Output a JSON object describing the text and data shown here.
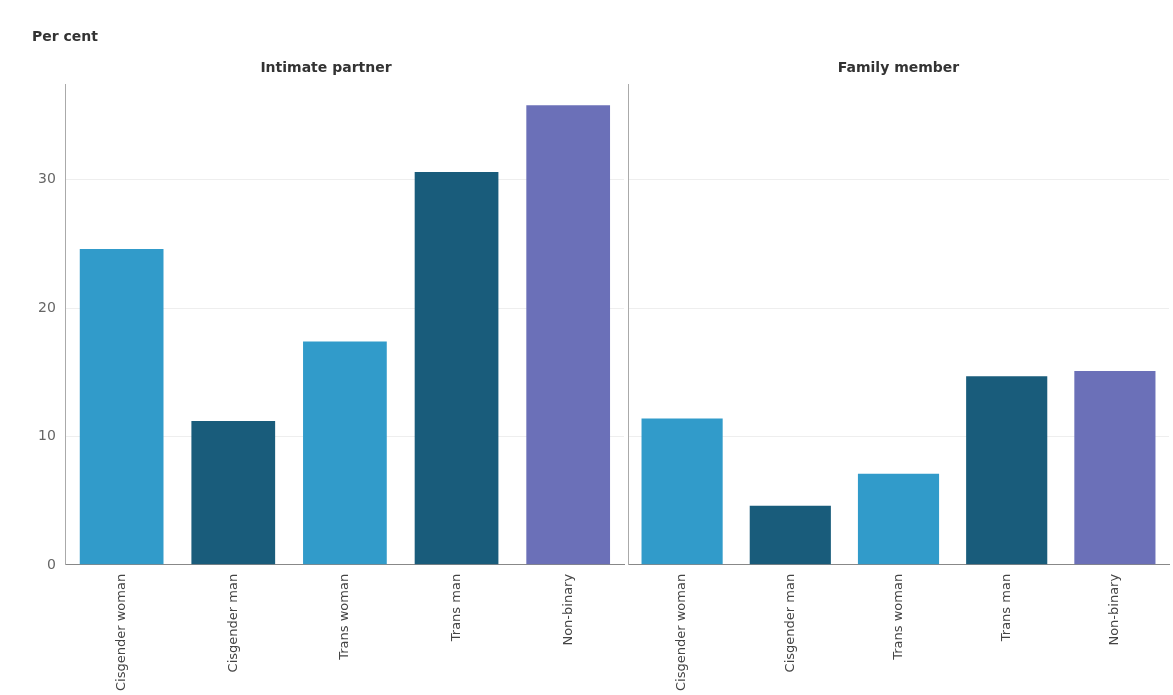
{
  "chart_data": [
    {
      "type": "bar",
      "title": "Intimate partner",
      "ylabel": "Per cent",
      "categories": [
        "Cisgender woman",
        "Cisgender man",
        "Trans woman",
        "Trans man",
        "Non-binary"
      ],
      "values": [
        24.6,
        11.2,
        17.4,
        30.6,
        35.8
      ],
      "colors": [
        "#319bca",
        "#195c7b",
        "#319bca",
        "#195c7b",
        "#6b70b8"
      ],
      "ylim": [
        0,
        37.4
      ],
      "yticks": [
        0,
        10,
        20,
        30
      ],
      "grid": "y"
    },
    {
      "type": "bar",
      "title": "Family member",
      "categories": [
        "Cisgender woman",
        "Cisgender man",
        "Trans woman",
        "Trans man",
        "Non-binary"
      ],
      "values": [
        11.4,
        4.6,
        7.1,
        14.7,
        15.1
      ],
      "colors": [
        "#319bca",
        "#195c7b",
        "#319bca",
        "#195c7b",
        "#6b70b8"
      ],
      "ylim": [
        0,
        37.4
      ],
      "yticks": [
        0,
        10,
        20,
        30
      ],
      "grid": "y",
      "tick_labels": "x"
    }
  ]
}
